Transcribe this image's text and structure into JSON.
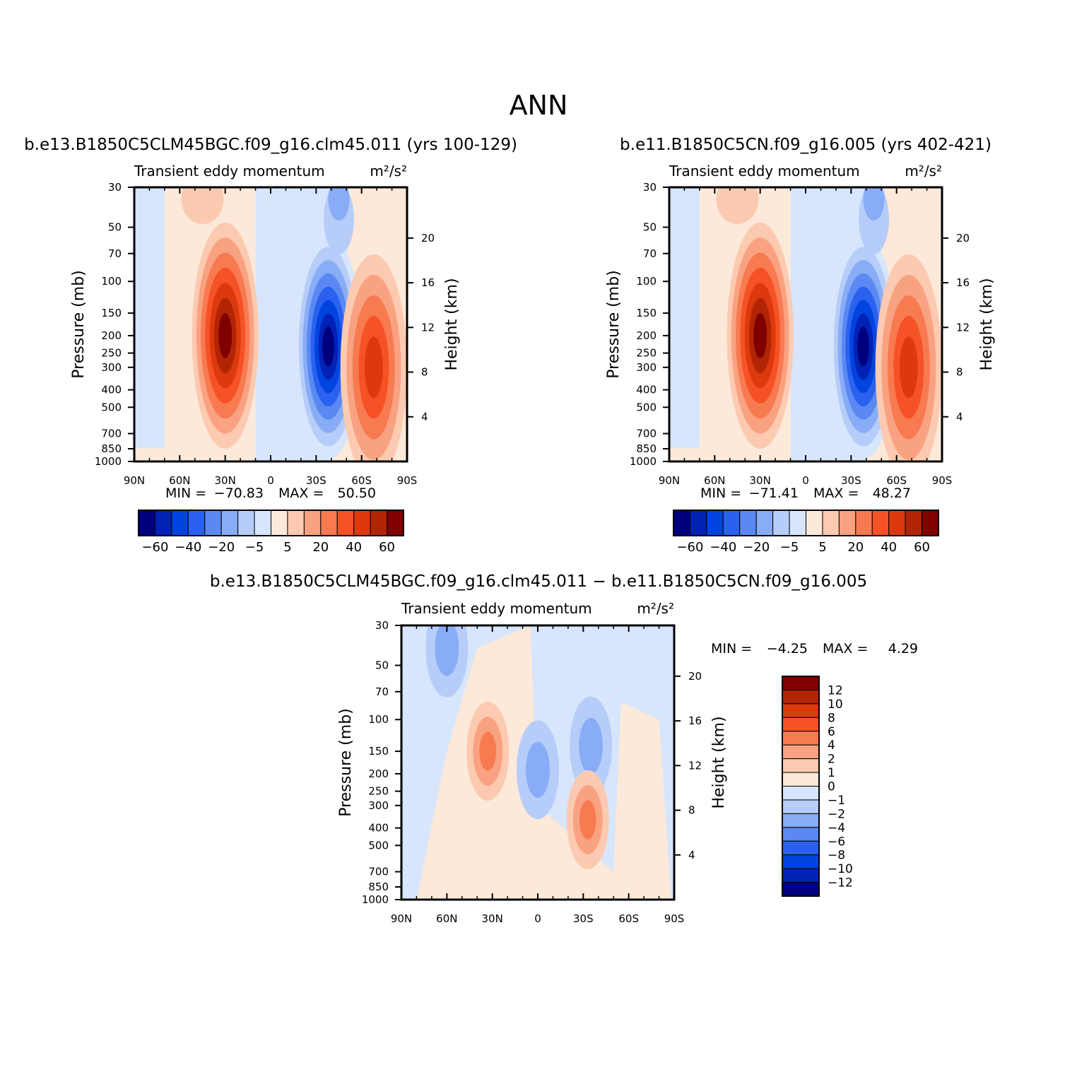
{
  "page_title": "ANN",
  "colors": {
    "levels_15": [
      "#00007f",
      "#0022b5",
      "#0044e0",
      "#2a62ef",
      "#5a89f3",
      "#89acf6",
      "#b6cdf9",
      "#d7e6fc",
      "#fde9d9",
      "#fccab0",
      "#f9a282",
      "#f87a51",
      "#f55225",
      "#dc3a0c",
      "#b12505",
      "#800000"
    ],
    "levels_diff": [
      "#00007f",
      "#0022b5",
      "#0044e0",
      "#2a62ef",
      "#5a89f3",
      "#89acf6",
      "#b6cdf9",
      "#d7e6fc",
      "#fde9d9",
      "#fccab0",
      "#f9a282",
      "#f87a51",
      "#f55225",
      "#dc3a0c",
      "#b12505",
      "#800000"
    ]
  },
  "chart_data": [
    {
      "type": "contour",
      "case": "b.e13.B1850C5CLM45BGC.f09_g16.clm45.011 (yrs 100-129)",
      "variable": "Transient eddy momentum",
      "units": "m²/s²",
      "ylabel": "Pressure (mb)",
      "y2label": "Height (km)",
      "x_ticks": [
        "90N",
        "60N",
        "30N",
        "0",
        "30S",
        "60S",
        "90S"
      ],
      "x_values": [
        90,
        60,
        30,
        0,
        -30,
        -60,
        -90
      ],
      "y_ticks": [
        "30",
        "50",
        "70",
        "100",
        "150",
        "200",
        "250",
        "300",
        "400",
        "500",
        "700",
        "850",
        "1000"
      ],
      "y_values": [
        30,
        50,
        70,
        100,
        150,
        200,
        250,
        300,
        400,
        500,
        700,
        850,
        1000
      ],
      "height_ticks": [
        "20",
        "16",
        "12",
        "8",
        "4"
      ],
      "height_values": [
        20,
        16,
        12,
        8,
        4
      ],
      "ylim": [
        1000,
        30
      ],
      "min_label": "MIN = ",
      "min": "−70.83",
      "max_label": "MAX = ",
      "max": "50.50",
      "colorbar_labels": [
        "−60",
        "−40",
        "−20",
        "−5",
        "5",
        "20",
        "40",
        "60"
      ],
      "features": [
        {
          "lat": 30,
          "p": 200,
          "value": 50.5,
          "sign": "positive"
        },
        {
          "lat": -38,
          "p": 230,
          "value": -70.83,
          "sign": "negative"
        },
        {
          "lat": -68,
          "p": 300,
          "value": 38,
          "sign": "positive"
        }
      ]
    },
    {
      "type": "contour",
      "case": "b.e11.B1850C5CN.f09_g16.005 (yrs 402-421)",
      "variable": "Transient eddy momentum",
      "units": "m²/s²",
      "ylabel": "Pressure (mb)",
      "y2label": "Height (km)",
      "x_ticks": [
        "90N",
        "60N",
        "30N",
        "0",
        "30S",
        "60S",
        "90S"
      ],
      "x_values": [
        90,
        60,
        30,
        0,
        -30,
        -60,
        -90
      ],
      "y_ticks": [
        "30",
        "50",
        "70",
        "100",
        "150",
        "200",
        "250",
        "300",
        "400",
        "500",
        "700",
        "850",
        "1000"
      ],
      "y_values": [
        30,
        50,
        70,
        100,
        150,
        200,
        250,
        300,
        400,
        500,
        700,
        850,
        1000
      ],
      "height_ticks": [
        "20",
        "16",
        "12",
        "8",
        "4"
      ],
      "height_values": [
        20,
        16,
        12,
        8,
        4
      ],
      "ylim": [
        1000,
        30
      ],
      "min_label": "MIN = ",
      "min": "−71.41",
      "max_label": "MAX = ",
      "max": "48.27",
      "colorbar_labels": [
        "−60",
        "−40",
        "−20",
        "−5",
        "5",
        "20",
        "40",
        "60"
      ],
      "features": [
        {
          "lat": 30,
          "p": 200,
          "value": 48.27,
          "sign": "positive"
        },
        {
          "lat": -38,
          "p": 230,
          "value": -71.41,
          "sign": "negative"
        },
        {
          "lat": -68,
          "p": 300,
          "value": 37,
          "sign": "positive"
        }
      ]
    },
    {
      "type": "contour",
      "case": "b.e13.B1850C5CLM45BGC.f09_g16.clm45.011 − b.e11.B1850C5CN.f09_g16.005",
      "variable": "Transient eddy momentum",
      "units": "m²/s²",
      "ylabel": "Pressure (mb)",
      "y2label": "Height (km)",
      "x_ticks": [
        "90N",
        "60N",
        "30N",
        "0",
        "30S",
        "60S",
        "90S"
      ],
      "x_values": [
        90,
        60,
        30,
        0,
        -30,
        -60,
        -90
      ],
      "y_ticks": [
        "30",
        "50",
        "70",
        "100",
        "150",
        "200",
        "250",
        "300",
        "400",
        "500",
        "700",
        "850",
        "1000"
      ],
      "y_values": [
        30,
        50,
        70,
        100,
        150,
        200,
        250,
        300,
        400,
        500,
        700,
        850,
        1000
      ],
      "height_ticks": [
        "20",
        "16",
        "12",
        "8",
        "4"
      ],
      "height_values": [
        20,
        16,
        12,
        8,
        4
      ],
      "ylim": [
        1000,
        30
      ],
      "min_label": "MIN = ",
      "min": "−4.25",
      "max_label": "MAX = ",
      "max": "4.29",
      "colorbar_labels": [
        "12",
        "10",
        "8",
        "6",
        "4",
        "2",
        "1",
        "0",
        "−1",
        "−2",
        "−4",
        "−6",
        "−8",
        "−10",
        "−12"
      ],
      "features": [
        {
          "lat": 60,
          "p": 40,
          "value": -2.5,
          "sign": "negative"
        },
        {
          "lat": 33,
          "p": 150,
          "value": 4.29,
          "sign": "positive"
        },
        {
          "lat": 0,
          "p": 190,
          "value": -2.3,
          "sign": "negative"
        },
        {
          "lat": -35,
          "p": 140,
          "value": -2.6,
          "sign": "negative"
        },
        {
          "lat": -33,
          "p": 360,
          "value": 3.5,
          "sign": "positive"
        }
      ]
    }
  ]
}
